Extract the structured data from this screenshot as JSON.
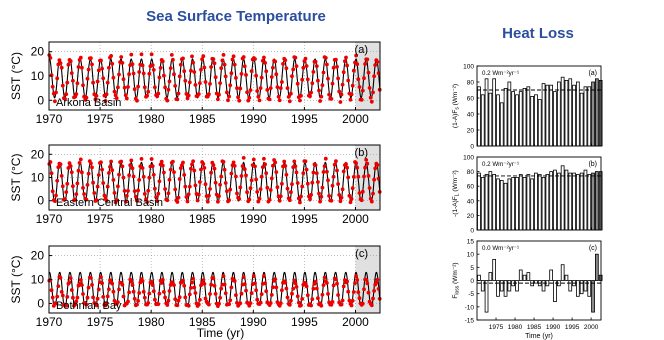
{
  "headings": {
    "left": "Sea Surface Temperature",
    "right": "Heat Loss"
  },
  "sst_panel": {
    "ylabel": "SST (°C)",
    "xlabel": "Time (yr)",
    "x_ticks": [
      "1970",
      "1975",
      "1980",
      "1985",
      "1990",
      "1995",
      "2000"
    ],
    "x_tick_values": [
      1970,
      1975,
      1980,
      1985,
      1990,
      1995,
      2000
    ],
    "xlim": [
      1970,
      2002.4
    ],
    "ylim": [
      -4,
      24
    ],
    "y_ticks": [
      "0",
      "10",
      "20"
    ],
    "y_tick_values": [
      0,
      10,
      20
    ],
    "shaded_from": 2000,
    "line_color": "#000000",
    "point_color": "#ee0000",
    "panel_labels": [
      "(a)",
      "(b)",
      "(c)"
    ],
    "station_labels": [
      "Arkona Basin",
      "Eastern Central Basin",
      "Bothnian Bay"
    ]
  },
  "heat_panel": {
    "xlabel": "Time (yr)",
    "x_ticks": [
      "1975",
      "1980",
      "1985",
      "1990",
      "1995",
      "2000"
    ],
    "x_tick_values": [
      1975,
      1980,
      1985,
      1990,
      1995,
      2000
    ],
    "xlim": [
      1970,
      2002.6
    ],
    "subplots": [
      {
        "panel_label": "(a)",
        "ylabel": "(1-A)F_s (Wm⁻²)",
        "ylabel_main": "(1-A)F",
        "ylabel_sub": "s",
        "ylabel_unit": " (Wm⁻²)",
        "trend": "0.2 Wm⁻²yr⁻¹",
        "ylim": [
          0,
          100
        ],
        "y_ticks": [
          "0",
          "20",
          "40",
          "60",
          "80",
          "100"
        ],
        "y_tick_values": [
          0,
          20,
          40,
          60,
          80,
          100
        ],
        "mean": 70
      },
      {
        "panel_label": "(b)",
        "ylabel": "-(1-A)F_L (Wm⁻²)",
        "ylabel_main": "-(1-A)F",
        "ylabel_sub": "L",
        "ylabel_unit": " (Wm⁻²)",
        "trend": "0.2 Wm⁻²yr⁻¹",
        "ylim": [
          0,
          100
        ],
        "y_ticks": [
          "0",
          "20",
          "40",
          "60",
          "80",
          "100"
        ],
        "y_tick_values": [
          0,
          20,
          40,
          60,
          80,
          100
        ],
        "mean": 74
      },
      {
        "panel_label": "(c)",
        "ylabel": "F_loss (Wm⁻²)",
        "ylabel_main": "F",
        "ylabel_sub": "loss",
        "ylabel_unit": " (Wm⁻²)",
        "trend": "0.0 Wm⁻²yr⁻¹",
        "ylim": [
          -15,
          15
        ],
        "y_ticks": [
          "-15",
          "-10",
          "-5",
          "0",
          "5",
          "10",
          "15"
        ],
        "y_tick_values": [
          -15,
          -10,
          -5,
          0,
          5,
          10,
          15
        ],
        "mean": -1
      }
    ]
  },
  "chart_data": [
    {
      "type": "line",
      "title": "Sea Surface Temperature",
      "panel": "(a)",
      "station": "Arkona Basin",
      "xlabel": "",
      "ylabel": "SST (°C)",
      "xlim": [
        1970,
        2002.4
      ],
      "ylim": [
        -4,
        24
      ],
      "grid": true,
      "shaded_region": [
        2000,
        2002.4
      ],
      "series": [
        {
          "role": "model",
          "kind": "line",
          "mean": 9,
          "amplitude": 8,
          "phase": 0.55
        },
        {
          "role": "observations",
          "kind": "points",
          "mean": 9,
          "amplitude": 8.5,
          "phase": 0.55
        }
      ]
    },
    {
      "type": "line",
      "panel": "(b)",
      "station": "Eastern Central Basin",
      "xlabel": "",
      "ylabel": "SST (°C)",
      "xlim": [
        1970,
        2002.4
      ],
      "ylim": [
        -4,
        24
      ],
      "grid": true,
      "shaded_region": [
        2000,
        2002.4
      ],
      "series": [
        {
          "role": "model",
          "kind": "line",
          "mean": 8,
          "amplitude": 8.5,
          "phase": 0.55
        },
        {
          "role": "observations",
          "kind": "points",
          "mean": 8.5,
          "amplitude": 8.5,
          "phase": 0.55
        }
      ]
    },
    {
      "type": "line",
      "panel": "(c)",
      "station": "Bothnian Bay",
      "xlabel": "Time (yr)",
      "ylabel": "SST (°C)",
      "xlim": [
        1970,
        2002.4
      ],
      "ylim": [
        -4,
        24
      ],
      "grid": true,
      "shaded_region": [
        2000,
        2002.4
      ],
      "series": [
        {
          "role": "model",
          "kind": "line",
          "mean": 5.5,
          "amplitude": 7.5,
          "phase": 0.55
        },
        {
          "role": "observations",
          "kind": "points",
          "mean": 4,
          "amplitude": 6,
          "phase": 0.55
        }
      ]
    },
    {
      "type": "bar",
      "title": "Heat Loss",
      "panel": "(a)",
      "ylabel": "(1-A)F_s (Wm⁻²)",
      "ylim": [
        0,
        100
      ],
      "annotation": "0.2 Wm⁻²yr⁻¹",
      "mean_line": 70,
      "x": [
        1970,
        1971,
        1972,
        1973,
        1974,
        1975,
        1976,
        1977,
        1978,
        1979,
        1980,
        1981,
        1982,
        1983,
        1984,
        1985,
        1986,
        1987,
        1988,
        1989,
        1990,
        1991,
        1992,
        1993,
        1994,
        1995,
        1996,
        1997,
        1998,
        1999,
        2000,
        2001,
        2002
      ],
      "values": [
        74,
        64,
        84,
        66,
        84,
        64,
        54,
        72,
        80,
        68,
        64,
        68,
        72,
        74,
        62,
        64,
        58,
        78,
        76,
        76,
        68,
        80,
        86,
        82,
        84,
        76,
        80,
        66,
        74,
        74,
        80,
        84,
        82
      ],
      "shaded_from": 2000
    },
    {
      "type": "bar",
      "panel": "(b)",
      "ylabel": "-(1-A)F_L (Wm⁻²)",
      "ylim": [
        0,
        100
      ],
      "annotation": "0.2 Wm⁻²yr⁻¹",
      "mean_line": 74,
      "x": [
        1970,
        1971,
        1972,
        1973,
        1974,
        1975,
        1976,
        1977,
        1978,
        1979,
        1980,
        1981,
        1982,
        1983,
        1984,
        1985,
        1986,
        1987,
        1988,
        1989,
        1990,
        1991,
        1992,
        1993,
        1994,
        1995,
        1996,
        1997,
        1998,
        1999,
        2000,
        2001,
        2002
      ],
      "values": [
        78,
        72,
        76,
        80,
        76,
        70,
        68,
        64,
        70,
        72,
        72,
        76,
        72,
        76,
        70,
        78,
        76,
        72,
        76,
        80,
        82,
        78,
        88,
        82,
        78,
        78,
        76,
        78,
        82,
        76,
        78,
        80,
        80
      ],
      "shaded_from": 2000
    },
    {
      "type": "bar",
      "panel": "(c)",
      "xlabel": "Time (yr)",
      "ylabel": "F_loss (Wm⁻²)",
      "ylim": [
        -15,
        15
      ],
      "annotation": "0.0 Wm⁻²yr⁻¹",
      "mean_line": -1,
      "x": [
        1970,
        1971,
        1972,
        1973,
        1974,
        1975,
        1976,
        1977,
        1978,
        1979,
        1980,
        1981,
        1982,
        1983,
        1984,
        1985,
        1986,
        1987,
        1988,
        1989,
        1990,
        1991,
        1992,
        1993,
        1994,
        1995,
        1996,
        1997,
        1998,
        1999,
        2000,
        2001,
        2002
      ],
      "values": [
        2,
        -4,
        -12,
        3,
        8,
        -6,
        -4,
        -6,
        -4,
        -2,
        -4,
        4,
        2,
        3,
        -2,
        -1,
        -2,
        -4,
        -2,
        4,
        -8,
        -2,
        6,
        2,
        -4,
        -2,
        -6,
        -5,
        -4,
        -6,
        -12,
        10,
        2
      ],
      "shaded_from": 2000
    }
  ]
}
